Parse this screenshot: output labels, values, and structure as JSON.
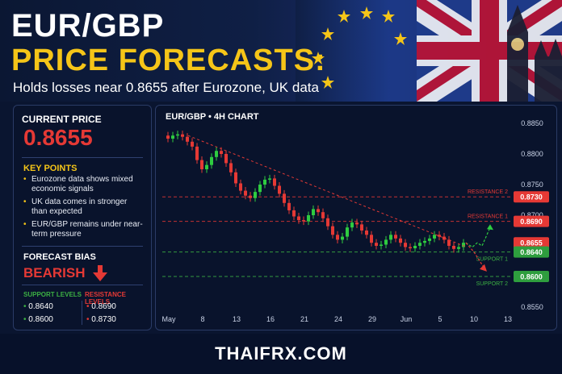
{
  "header": {
    "title_line1": "EUR/GBP",
    "title_line2": "PRICE FORECASTS:",
    "subtitle": "Holds losses near 0.8655 after Eurozone, UK data"
  },
  "sidebar": {
    "current_price_label": "CURRENT PRICE",
    "current_price": "0.8655",
    "key_points_title": "KEY POINTS",
    "key_points": [
      "Eurozone data shows mixed economic signals",
      "UK data comes in stronger than expected",
      "EUR/GBP remains under near-term pressure"
    ],
    "forecast_bias_label": "FORECAST BIAS",
    "forecast_bias": "BEARISH",
    "support_title": "SUPPORT LEVELS",
    "support_levels": [
      "0.8640",
      "0.8600"
    ],
    "resistance_title": "RESISTANCE LEVELS",
    "resistance_levels": [
      "0.8690",
      "0.8730"
    ]
  },
  "chart": {
    "title": "EUR/GBP • 4H CHART"
  },
  "chart_data": {
    "type": "line",
    "title": "EUR/GBP • 4H CHART",
    "x_tick_labels": [
      "May",
      "8",
      "13",
      "16",
      "21",
      "24",
      "29",
      "Jun",
      "5",
      "10",
      "13"
    ],
    "y_tick_labels": [
      "0.8850",
      "0.8800",
      "0.8750",
      "0.8700",
      "0.8650",
      "0.8600",
      "0.8550"
    ],
    "ylim": [
      0.855,
      0.885
    ],
    "series": [
      {
        "type": "candlestick",
        "close": [
          0.8825,
          0.883,
          0.8832,
          0.8828,
          0.882,
          0.8812,
          0.879,
          0.8775,
          0.8782,
          0.8795,
          0.8805,
          0.88,
          0.8785,
          0.877,
          0.8752,
          0.874,
          0.8732,
          0.8728,
          0.8738,
          0.875,
          0.8758,
          0.876,
          0.8748,
          0.8735,
          0.872,
          0.8708,
          0.8698,
          0.8692,
          0.869,
          0.87,
          0.871,
          0.8705,
          0.8695,
          0.8682,
          0.8668,
          0.866,
          0.8665,
          0.868,
          0.8688,
          0.8685,
          0.8675,
          0.8668,
          0.8655,
          0.865,
          0.8652,
          0.866,
          0.8668,
          0.8662,
          0.8655,
          0.8648,
          0.8646,
          0.865,
          0.8655,
          0.8658,
          0.8662,
          0.8668,
          0.8665,
          0.866,
          0.865,
          0.8645,
          0.8648,
          0.8655
        ]
      }
    ],
    "resistance_lines": [
      {
        "label": "RESISTANCE 2",
        "value": 0.873
      },
      {
        "label": "RESISTANCE 1",
        "value": 0.869
      }
    ],
    "support_lines": [
      {
        "label": "SUPPORT 1",
        "value": 0.864
      },
      {
        "label": "SUPPORT 2",
        "value": 0.86
      }
    ],
    "current_price_tag": {
      "value": 0.8655,
      "label": "0.8655"
    },
    "level_tags": [
      {
        "label": "0.8730",
        "value": 0.873,
        "color": "#e53935"
      },
      {
        "label": "0.8690",
        "value": 0.869,
        "color": "#e53935"
      },
      {
        "label": "0.8655",
        "value": 0.8655,
        "color": "#e53935"
      },
      {
        "label": "0.8640",
        "value": 0.864,
        "color": "#2e9e3e"
      },
      {
        "label": "0.8600",
        "value": 0.86,
        "color": "#2e9e3e"
      }
    ],
    "grid": false,
    "colors": {
      "up": "#2ecc40",
      "down": "#e53935",
      "resistance": "#e53935",
      "support": "#3cb043"
    }
  },
  "footer": {
    "brand": "THAIFRX.COM"
  }
}
